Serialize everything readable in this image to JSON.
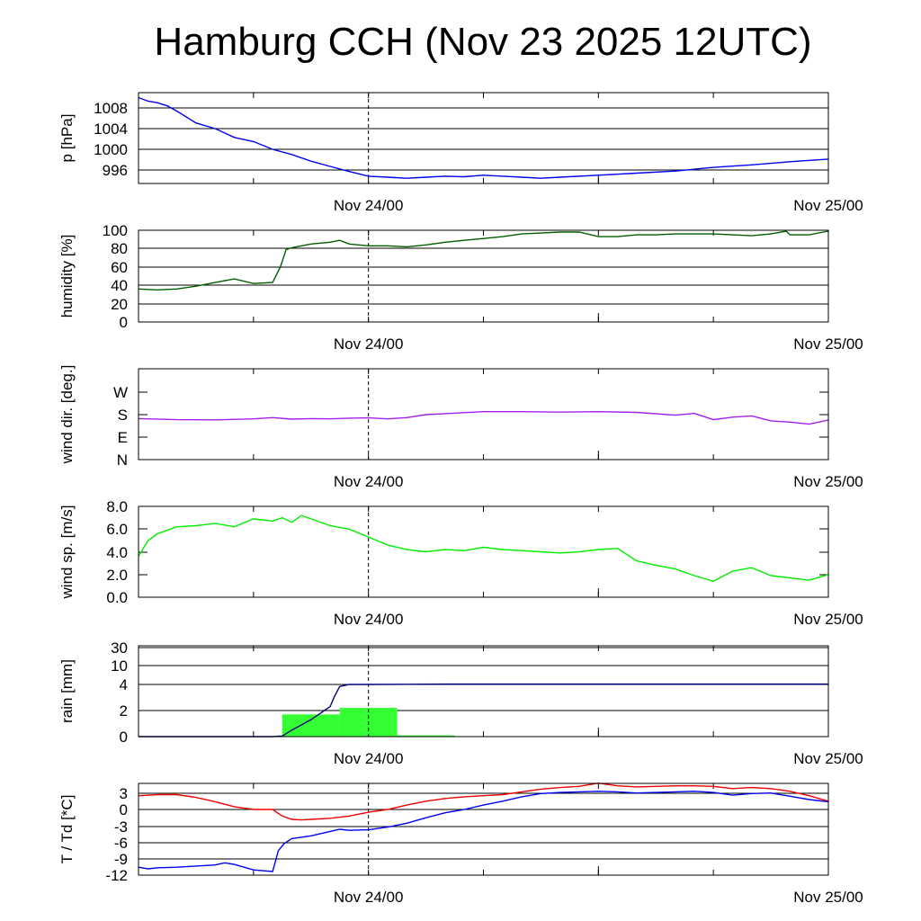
{
  "title": "Hamburg CCH (Nov 23 2025 12UTC)",
  "x_axis": {
    "start": "Nov 23 12UTC",
    "end": "Nov 25 00UTC",
    "tick_labels": [
      "Nov 24/00",
      "Nov 25/00"
    ]
  },
  "colors": {
    "pressure": "#0000ee",
    "humidity": "#005f00",
    "wind_dir": "#a020f0",
    "wind_speed": "#00ee00",
    "rain_bars": "#33ff33",
    "rain_total": "#000080",
    "temperature": "#ee0000",
    "dewpoint": "#0000ee"
  },
  "chart_data": [
    {
      "type": "line",
      "ylabel": "p [hPa]",
      "yticks": [
        "1008",
        "1004",
        "1000",
        "996"
      ],
      "ylim": [
        993,
        1011
      ],
      "series": [
        {
          "color": "#0000ee",
          "x": [
            0,
            0.5,
            1,
            1.5,
            2,
            3,
            4,
            5,
            6,
            7,
            8,
            9,
            10,
            11,
            12,
            13,
            14,
            15,
            16,
            17,
            18,
            19,
            20,
            21,
            22,
            24,
            26,
            28,
            30,
            32,
            34,
            36
          ],
          "y": [
            1010,
            1009.3,
            1009,
            1008.4,
            1007.4,
            1005.1,
            1004,
            1002.3,
            1001.5,
            1000,
            999,
            997.7,
            996.7,
            995.7,
            994.8,
            994.6,
            994.4,
            994.6,
            994.8,
            994.7,
            995,
            994.8,
            994.6,
            994.4,
            994.6,
            995,
            995.4,
            995.8,
            996.5,
            997,
            997.6,
            998.1
          ]
        }
      ]
    },
    {
      "type": "line",
      "ylabel": "humidity [%]",
      "yticks": [
        "100",
        "80",
        "60",
        "40",
        "20",
        "0"
      ],
      "ylim": [
        0,
        100
      ],
      "series": [
        {
          "color": "#005f00",
          "x": [
            0,
            1,
            2,
            3,
            4,
            5,
            6,
            7,
            7.4,
            7.7,
            8,
            9,
            10,
            10.5,
            11,
            12,
            13,
            14,
            15,
            16,
            17,
            18,
            19,
            20,
            21,
            22,
            23,
            24,
            25,
            26,
            27,
            28,
            29,
            30,
            31,
            32,
            33,
            33.8,
            34,
            35,
            36
          ],
          "y": [
            36,
            35,
            36,
            39,
            43,
            47,
            42,
            43,
            60,
            79,
            81,
            85,
            87,
            89,
            85,
            83,
            83,
            82,
            84,
            87,
            89,
            91,
            93,
            96,
            97,
            98,
            98,
            93,
            93,
            95,
            95,
            96,
            96,
            96,
            95,
            94,
            96,
            99,
            95,
            95,
            99
          ]
        }
      ]
    },
    {
      "type": "line",
      "ylabel": "wind dir. [deg.]",
      "yticks": [
        "W",
        "S",
        "E",
        "N"
      ],
      "ylim": [
        0,
        360
      ],
      "series": [
        {
          "color": "#a020f0",
          "x": [
            0,
            2,
            4,
            6,
            7,
            8,
            9,
            10,
            11,
            12,
            13,
            14,
            15,
            16,
            18,
            20,
            22,
            24,
            26,
            28,
            29,
            30,
            31,
            32,
            33,
            34,
            35,
            36
          ],
          "y": [
            164,
            160,
            159,
            163,
            168,
            162,
            164,
            163,
            166,
            167,
            163,
            168,
            180,
            184,
            192,
            192,
            190,
            192,
            189,
            178,
            185,
            160,
            170,
            175,
            155,
            150,
            142,
            158
          ]
        }
      ]
    },
    {
      "type": "line",
      "ylabel": "wind sp. [m/s]",
      "yticks": [
        "8.0",
        "6.0",
        "4.0",
        "2.0",
        "0.0"
      ],
      "ylim": [
        0,
        8
      ],
      "series": [
        {
          "color": "#00ee00",
          "x": [
            0,
            0.5,
            1,
            2,
            3,
            4,
            5,
            6,
            7,
            7.5,
            8,
            8.5,
            9,
            10,
            11,
            12,
            13,
            14,
            15,
            16,
            17,
            18,
            19,
            20,
            21,
            22,
            23,
            24,
            25,
            26,
            27,
            28,
            29,
            30,
            31,
            32,
            33,
            34,
            35,
            36
          ],
          "y": [
            3.6,
            5.0,
            5.6,
            6.2,
            6.3,
            6.5,
            6.2,
            6.9,
            6.7,
            7.0,
            6.6,
            7.2,
            6.9,
            6.3,
            6.0,
            5.3,
            4.6,
            4.2,
            4.0,
            4.2,
            4.1,
            4.4,
            4.2,
            4.1,
            4.0,
            3.9,
            4.0,
            4.2,
            4.3,
            3.2,
            2.8,
            2.5,
            1.9,
            1.4,
            2.3,
            2.6,
            1.9,
            1.7,
            1.5,
            2.0
          ]
        }
      ]
    },
    {
      "type": "bar",
      "ylabel": "rain [mm]",
      "yticks": [
        "30",
        "10",
        "4",
        "2",
        "0"
      ],
      "bars": [
        {
          "x_start": 7.5,
          "x_end": 10.5,
          "value": 1.7
        },
        {
          "x_start": 10.5,
          "x_end": 13.5,
          "value": 2.2
        },
        {
          "x_start": 13.5,
          "x_end": 16.5,
          "value": 0.1
        }
      ],
      "series": [
        {
          "color": "#000080",
          "x": [
            0,
            7,
            7.5,
            8,
            8.5,
            9,
            9.5,
            10,
            10.2,
            10.5,
            11,
            12,
            14,
            16,
            20,
            36
          ],
          "y": [
            0,
            0,
            0.05,
            0.5,
            0.9,
            1.3,
            1.8,
            2.3,
            3.0,
            3.85,
            4.0,
            4.0,
            4.05,
            4.1,
            4.1,
            4.1
          ]
        }
      ]
    },
    {
      "type": "line",
      "ylabel": "T / Td [*C]",
      "yticks": [
        "3",
        "0",
        "-3",
        "-6",
        "-9",
        "-12"
      ],
      "ylim": [
        -12,
        5
      ],
      "series": [
        {
          "color": "#ee0000",
          "x": [
            0,
            1,
            2,
            3,
            4,
            5,
            6,
            7,
            7.5,
            8,
            8.5,
            9,
            10,
            11,
            12,
            13,
            14,
            15,
            16,
            17,
            18,
            19,
            20,
            21,
            22,
            23,
            24,
            25,
            26,
            27,
            28,
            29,
            30,
            31,
            32,
            33,
            34,
            35,
            36
          ],
          "y": [
            2.5,
            2.7,
            2.7,
            2.2,
            1.4,
            0.5,
            0,
            0,
            -1.2,
            -1.8,
            -1.9,
            -1.8,
            -1.6,
            -1.2,
            -0.5,
            0,
            0.8,
            1.5,
            2.0,
            2.3,
            2.5,
            2.7,
            3.2,
            3.7,
            4.0,
            4.2,
            4.8,
            4.3,
            4.1,
            4.2,
            4.3,
            4.3,
            4.2,
            3.8,
            4.0,
            3.8,
            3.3,
            2.5,
            1.5
          ]
        },
        {
          "color": "#0000ee",
          "x": [
            0,
            0.5,
            1,
            2,
            3,
            4,
            4.5,
            5,
            6,
            7,
            7.3,
            7.6,
            8,
            9,
            10,
            10.5,
            11,
            12,
            13,
            14,
            15,
            16,
            17,
            18,
            19,
            20,
            21,
            22,
            23,
            24,
            25,
            26,
            27,
            28,
            29,
            30,
            31,
            32,
            33,
            34,
            35,
            36
          ],
          "y": [
            -10.5,
            -10.8,
            -10.6,
            -10.5,
            -10.3,
            -10.1,
            -9.7,
            -10.0,
            -11.0,
            -11.3,
            -7.5,
            -6.2,
            -5.3,
            -4.8,
            -4.0,
            -3.6,
            -3.8,
            -3.7,
            -3.2,
            -2.5,
            -1.5,
            -0.6,
            0,
            0.8,
            1.5,
            2.3,
            2.9,
            3.1,
            3.2,
            3.3,
            3.2,
            3.0,
            3.1,
            3.2,
            3.3,
            3.1,
            2.6,
            2.9,
            3.0,
            2.4,
            1.8,
            1.4
          ]
        }
      ]
    }
  ]
}
